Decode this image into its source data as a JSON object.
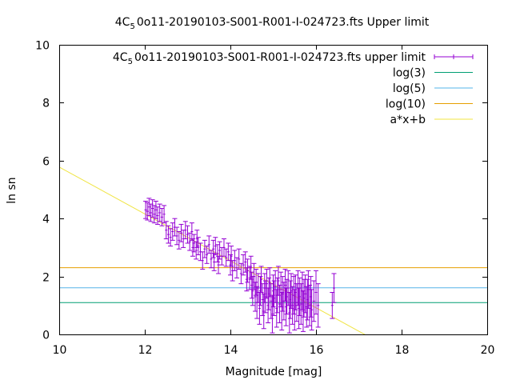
{
  "chart_data": {
    "type": "scatter",
    "title": "4C_5 0o11-20190103-S001-R001-I-024723.fts Upper limit",
    "title_parts": {
      "pre": "4C",
      "sub": "5",
      "post": "0o11-20190103-S001-R001-I-024723.fts Upper limit"
    },
    "xlabel": "Magnitude [mag]",
    "ylabel": "ln sn",
    "xlim": [
      10,
      20
    ],
    "ylim": [
      0,
      10
    ],
    "xticks": [
      10,
      12,
      14,
      16,
      18,
      20
    ],
    "yticks": [
      0,
      2,
      4,
      6,
      8,
      10
    ],
    "grid": false,
    "legend_position": "top-right",
    "legend": [
      {
        "key": "data",
        "pre": "4C",
        "sub": "5",
        "post": "0o11-20190103-S001-R001-I-024723.fts upper limit",
        "style": "errorbars",
        "color": "#9400d3"
      },
      {
        "key": "log3",
        "label": "log(3)",
        "style": "line",
        "color": "#009e73"
      },
      {
        "key": "log5",
        "label": "log(5)",
        "style": "line",
        "color": "#56b4e9"
      },
      {
        "key": "log10",
        "label": "log(10)",
        "style": "line",
        "color": "#e69f00"
      },
      {
        "key": "fit",
        "label": "a*x+b",
        "style": "line",
        "color": "#f0e442"
      }
    ],
    "hlines": [
      {
        "key": "log3",
        "y": 1.0986,
        "color": "#009e73"
      },
      {
        "key": "log5",
        "y": 1.6094,
        "color": "#56b4e9"
      },
      {
        "key": "log10",
        "y": 2.3026,
        "color": "#e69f00"
      }
    ],
    "fit_line": {
      "a": -0.81,
      "b": 13.88,
      "color": "#f0e442"
    },
    "series": [
      {
        "color": "#9400d3",
        "points": [
          [
            12.02,
            4.3,
            0.3
          ],
          [
            12.06,
            4.25,
            0.3
          ],
          [
            12.1,
            4.4,
            0.3
          ],
          [
            12.14,
            4.2,
            0.3
          ],
          [
            12.18,
            4.35,
            0.3
          ],
          [
            12.22,
            4.15,
            0.3
          ],
          [
            12.26,
            4.3,
            0.3
          ],
          [
            12.3,
            4.1,
            0.3
          ],
          [
            12.35,
            4.2,
            0.3
          ],
          [
            12.4,
            4.05,
            0.3
          ],
          [
            12.45,
            4.15,
            0.3
          ],
          [
            12.5,
            3.6,
            0.3
          ],
          [
            12.55,
            3.45,
            0.3
          ],
          [
            12.6,
            3.35,
            0.3
          ],
          [
            12.65,
            3.55,
            0.3
          ],
          [
            12.7,
            3.7,
            0.3
          ],
          [
            12.75,
            3.4,
            0.3
          ],
          [
            12.8,
            3.25,
            0.3
          ],
          [
            12.85,
            3.5,
            0.3
          ],
          [
            12.9,
            3.3,
            0.3
          ],
          [
            12.95,
            3.6,
            0.3
          ],
          [
            13.0,
            3.45,
            0.3
          ],
          [
            13.05,
            3.2,
            0.3
          ],
          [
            13.1,
            3.55,
            0.3
          ],
          [
            13.12,
            3.0,
            0.3
          ],
          [
            13.15,
            3.15,
            0.3
          ],
          [
            13.2,
            2.9,
            0.3
          ],
          [
            13.22,
            3.3,
            0.3
          ],
          [
            13.25,
            3.05,
            0.3
          ],
          [
            13.3,
            2.85,
            0.3
          ],
          [
            13.35,
            2.55,
            0.3
          ],
          [
            13.4,
            2.95,
            0.3
          ],
          [
            13.45,
            2.75,
            0.3
          ],
          [
            13.5,
            3.1,
            0.3
          ],
          [
            13.55,
            2.6,
            0.3
          ],
          [
            13.6,
            2.95,
            0.3
          ],
          [
            13.62,
            2.5,
            0.3
          ],
          [
            13.65,
            3.05,
            0.3
          ],
          [
            13.7,
            2.8,
            0.3
          ],
          [
            13.72,
            2.4,
            0.3
          ],
          [
            13.75,
            2.9,
            0.3
          ],
          [
            13.8,
            2.7,
            0.3
          ],
          [
            13.85,
            3.0,
            0.3
          ],
          [
            13.9,
            2.65,
            0.3
          ],
          [
            13.95,
            2.85,
            0.3
          ],
          [
            14.0,
            2.4,
            0.35
          ],
          [
            14.02,
            2.7,
            0.35
          ],
          [
            14.05,
            2.2,
            0.35
          ],
          [
            14.1,
            2.55,
            0.35
          ],
          [
            14.15,
            2.3,
            0.35
          ],
          [
            14.2,
            2.6,
            0.35
          ],
          [
            14.25,
            2.1,
            0.35
          ],
          [
            14.3,
            2.4,
            0.35
          ],
          [
            14.35,
            2.5,
            0.35
          ],
          [
            14.38,
            1.9,
            0.4
          ],
          [
            14.4,
            2.2,
            0.4
          ],
          [
            14.45,
            1.95,
            0.4
          ],
          [
            14.48,
            2.3,
            0.4
          ],
          [
            14.5,
            1.7,
            0.45
          ],
          [
            14.52,
            1.5,
            0.5
          ],
          [
            14.55,
            2.0,
            0.45
          ],
          [
            14.58,
            1.3,
            0.5
          ],
          [
            14.6,
            1.8,
            0.45
          ],
          [
            14.62,
            1.1,
            0.55
          ],
          [
            14.65,
            1.6,
            0.5
          ],
          [
            14.68,
            0.9,
            0.55
          ],
          [
            14.7,
            1.5,
            0.5
          ],
          [
            14.72,
            1.9,
            0.45
          ],
          [
            14.75,
            1.2,
            0.55
          ],
          [
            14.78,
            0.8,
            0.6
          ],
          [
            14.8,
            1.6,
            0.5
          ],
          [
            14.82,
            1.3,
            0.55
          ],
          [
            14.85,
            1.75,
            0.5
          ],
          [
            14.88,
            1.0,
            0.6
          ],
          [
            14.9,
            1.4,
            0.55
          ],
          [
            14.92,
            1.8,
            0.5
          ],
          [
            14.95,
            1.15,
            0.6
          ],
          [
            14.98,
            0.7,
            0.65
          ],
          [
            15.0,
            1.5,
            0.55
          ],
          [
            15.02,
            1.25,
            0.6
          ],
          [
            15.05,
            1.65,
            0.55
          ],
          [
            15.08,
            0.9,
            0.65
          ],
          [
            15.1,
            1.35,
            0.6
          ],
          [
            15.12,
            1.85,
            0.5
          ],
          [
            15.15,
            1.05,
            0.65
          ],
          [
            15.18,
            1.55,
            0.6
          ],
          [
            15.2,
            0.8,
            0.65
          ],
          [
            15.22,
            1.4,
            0.6
          ],
          [
            15.25,
            1.15,
            0.65
          ],
          [
            15.28,
            1.7,
            0.55
          ],
          [
            15.3,
            0.95,
            0.65
          ],
          [
            15.32,
            1.3,
            0.6
          ],
          [
            15.35,
            1.6,
            0.6
          ],
          [
            15.38,
            0.75,
            0.7
          ],
          [
            15.4,
            1.2,
            0.65
          ],
          [
            15.42,
            1.5,
            0.6
          ],
          [
            15.45,
            1.0,
            0.65
          ],
          [
            15.48,
            1.35,
            0.65
          ],
          [
            15.5,
            0.85,
            0.7
          ],
          [
            15.52,
            1.45,
            0.6
          ],
          [
            15.55,
            1.1,
            0.65
          ],
          [
            15.58,
            1.6,
            0.6
          ],
          [
            15.6,
            0.9,
            0.7
          ],
          [
            15.62,
            1.3,
            0.65
          ],
          [
            15.65,
            1.05,
            0.7
          ],
          [
            15.68,
            1.5,
            0.65
          ],
          [
            15.7,
            0.8,
            0.7
          ],
          [
            15.72,
            1.25,
            0.65
          ],
          [
            15.75,
            1.4,
            0.65
          ],
          [
            15.78,
            0.95,
            0.7
          ],
          [
            15.8,
            1.2,
            0.7
          ],
          [
            15.82,
            1.55,
            0.65
          ],
          [
            15.85,
            1.0,
            0.7
          ],
          [
            15.88,
            1.3,
            0.7
          ],
          [
            15.9,
            0.85,
            0.7
          ],
          [
            15.95,
            1.15,
            0.7
          ],
          [
            16.0,
            1.45,
            0.75
          ],
          [
            16.05,
            1.0,
            0.75
          ],
          [
            16.38,
            1.0,
            0.45
          ],
          [
            16.42,
            1.6,
            0.5
          ]
        ]
      }
    ]
  }
}
